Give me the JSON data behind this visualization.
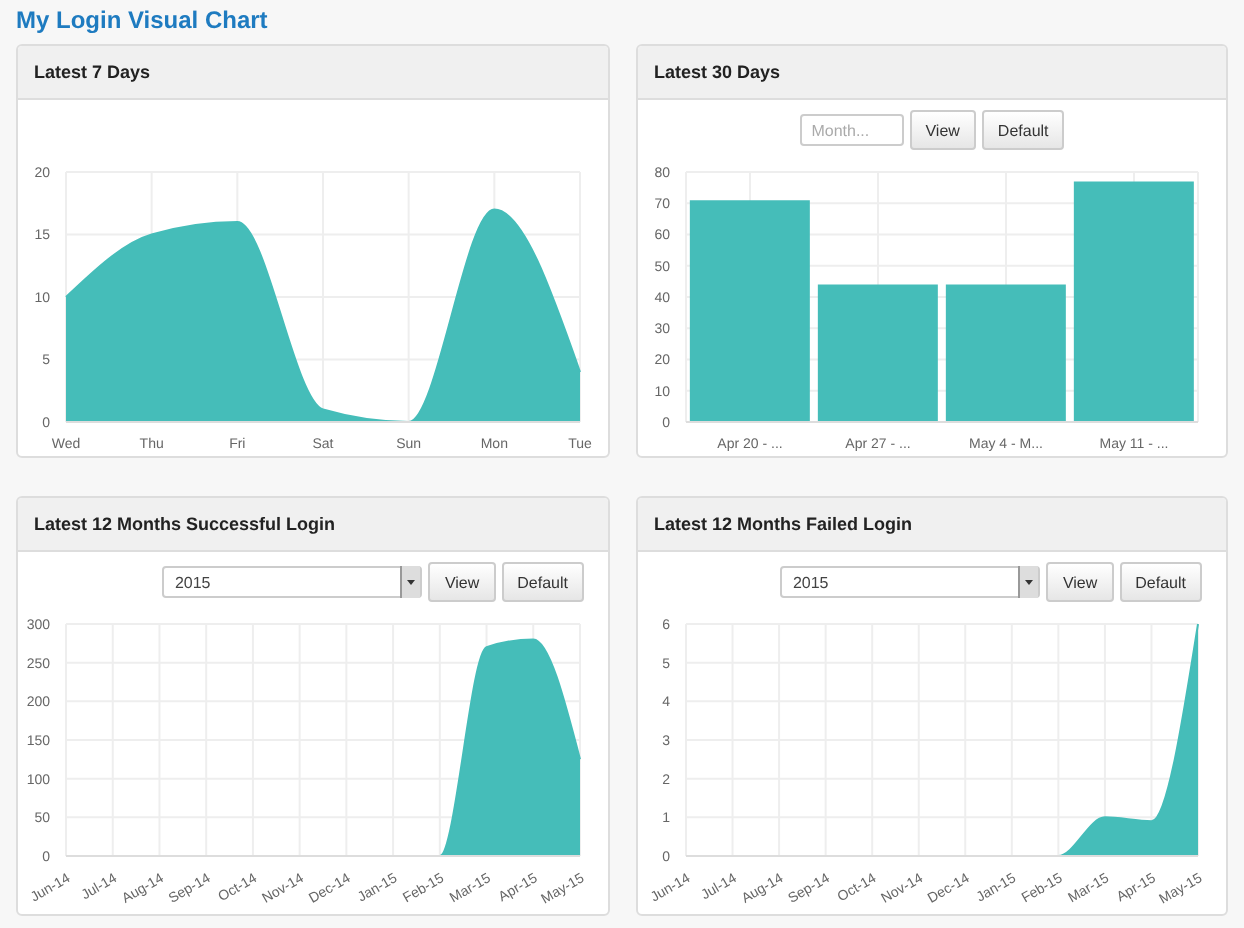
{
  "chart_data": [
    {
      "type": "other",
      "title": "My Login Visual Chart"
    },
    {
      "type": "area",
      "title": "Latest 7 Days",
      "categories": [
        "Wed",
        "Thu",
        "Fri",
        "Sat",
        "Sun",
        "Mon",
        "Tue"
      ],
      "values": [
        10,
        15,
        16,
        1,
        0,
        17,
        4
      ],
      "color": "#45bdb9",
      "ylim": [
        0,
        20
      ],
      "yticks": [
        0,
        5,
        10,
        15,
        20
      ],
      "grid": true
    },
    {
      "type": "bar",
      "title": "Latest 30 Days",
      "annotations": [
        "Month...",
        "View",
        "Default"
      ],
      "categories": [
        "Apr  20 - ...",
        "Apr  27 - ...",
        "May  4 - M...",
        "May  11 - ..."
      ],
      "values": [
        71,
        44,
        44,
        77
      ],
      "color": "#45bdb9",
      "ylim": [
        0,
        80
      ],
      "yticks": [
        0,
        10,
        20,
        30,
        40,
        50,
        60,
        70,
        80
      ],
      "grid": true
    },
    {
      "type": "area",
      "title": "Latest 12 Months Successful Login",
      "annotations": [
        "2015",
        "View",
        "Default"
      ],
      "categories": [
        "Jun-14",
        "Jul-14",
        "Aug-14",
        "Sep-14",
        "Oct-14",
        "Nov-14",
        "Dec-14",
        "Jan-15",
        "Feb-15",
        "Mar-15",
        "Apr-15",
        "May-15"
      ],
      "values": [
        0,
        0,
        0,
        0,
        0,
        0,
        0,
        0,
        0,
        270,
        280,
        125
      ],
      "color": "#45bdb9",
      "ylim": [
        0,
        300
      ],
      "yticks": [
        0,
        50,
        100,
        150,
        200,
        250,
        300
      ],
      "grid": true
    },
    {
      "type": "area",
      "title": "Latest 12 Months Failed Login",
      "annotations": [
        "2015",
        "View",
        "Default"
      ],
      "categories": [
        "Jun-14",
        "Jul-14",
        "Aug-14",
        "Sep-14",
        "Oct-14",
        "Nov-14",
        "Dec-14",
        "Jan-15",
        "Feb-15",
        "Mar-15",
        "Apr-15",
        "May-15"
      ],
      "values": [
        0,
        0,
        0,
        0,
        0,
        0,
        0,
        0,
        0,
        1,
        0.9,
        6
      ],
      "color": "#45bdb9",
      "ylim": [
        0,
        6
      ],
      "yticks": [
        0,
        1,
        2,
        3,
        4,
        5,
        6
      ],
      "grid": true
    }
  ]
}
